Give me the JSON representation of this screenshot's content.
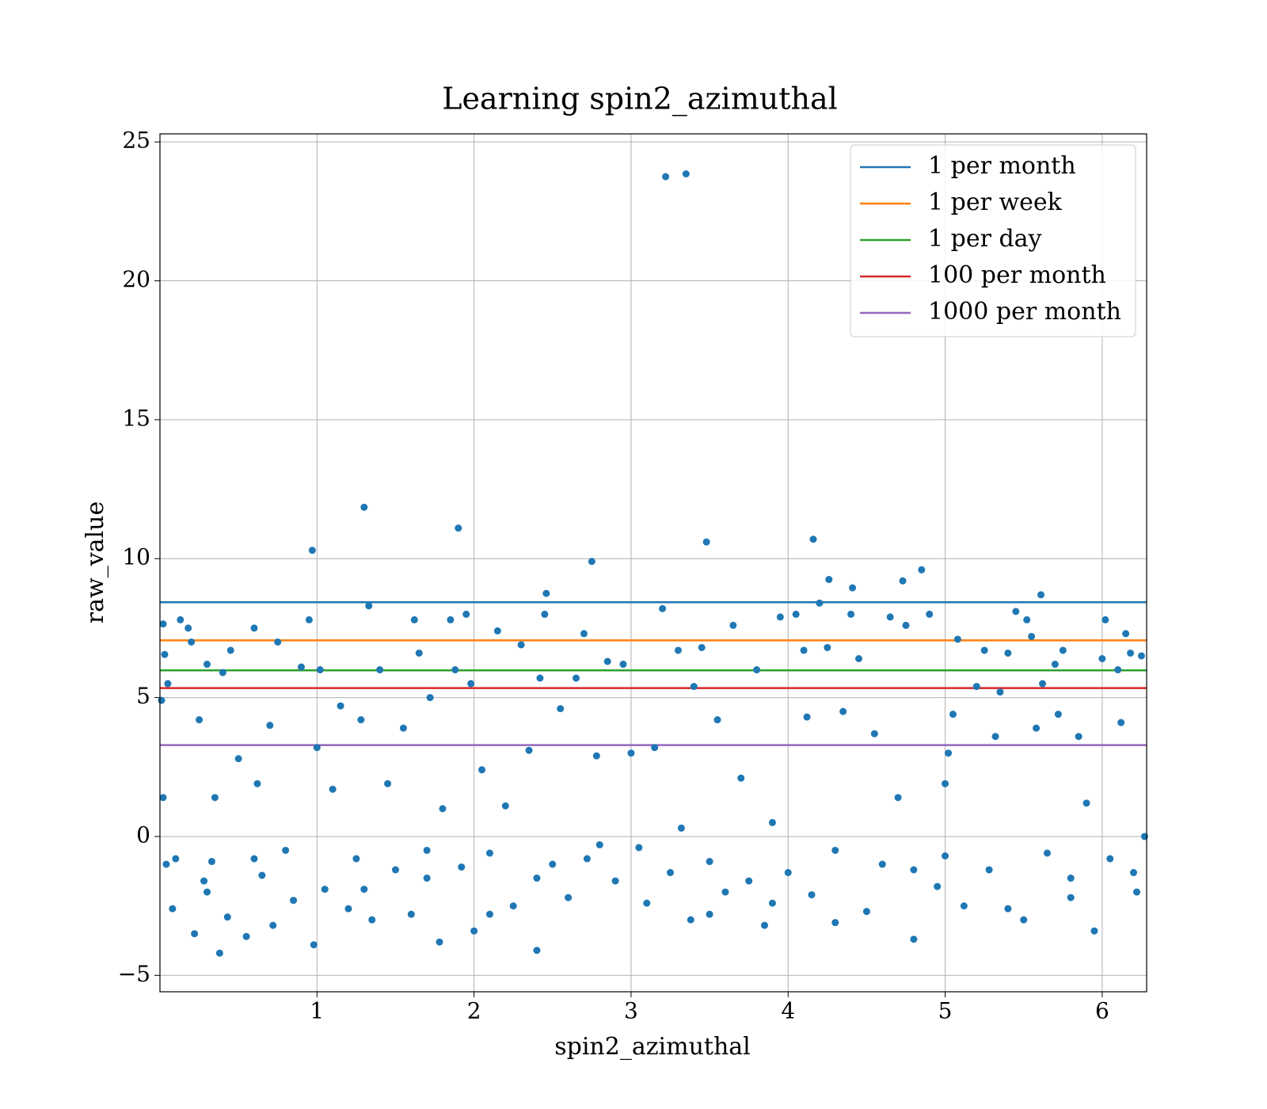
{
  "chart_data": {
    "type": "scatter",
    "title": "Learning spin2_azimuthal",
    "xlabel": "spin2_azimuthal",
    "ylabel": "raw_value",
    "color": "#1f77b4",
    "grid": true,
    "legend_loc": "upper right",
    "xlim": [
      0,
      6.283
    ],
    "ylim": [
      -5.59,
      25.29
    ],
    "xticks": [
      1,
      2,
      3,
      4,
      5,
      6
    ],
    "yticks": [
      {
        "value": -5,
        "label": "−5"
      },
      0,
      5,
      10,
      15,
      20,
      25
    ],
    "hlines": [
      {
        "name": "1 per month",
        "color": "#1f77b4",
        "value": 8.43
      },
      {
        "name": "1 per week",
        "color": "#ff7f0e",
        "value": 7.06
      },
      {
        "name": "1 per day",
        "color": "#2ca02c",
        "value": 5.98
      },
      {
        "name": "100 per month",
        "color": "#d62728",
        "value": 5.34
      },
      {
        "name": "1000 per month",
        "color": "#9467bd",
        "value": 3.29
      }
    ],
    "x": [
      3.22,
      3.35,
      1.3,
      1.9,
      0.97,
      3.48,
      4.16,
      2.75,
      4.26,
      4.41,
      4.73,
      4.85,
      5.61,
      2.46,
      0.02,
      0.03,
      0.05,
      0.01,
      0.02,
      0.04,
      0.08,
      0.1,
      0.13,
      0.18,
      0.2,
      0.22,
      0.25,
      0.28,
      0.3,
      0.33,
      0.35,
      0.38,
      0.4,
      0.43,
      0.45,
      0.5,
      0.55,
      0.6,
      0.62,
      0.65,
      0.7,
      0.72,
      0.75,
      0.8,
      0.85,
      0.9,
      0.95,
      0.98,
      1.0,
      1.02,
      1.05,
      1.1,
      1.15,
      1.2,
      1.25,
      1.28,
      1.33,
      1.35,
      1.4,
      1.45,
      1.5,
      1.55,
      1.6,
      1.62,
      1.65,
      1.7,
      1.72,
      1.78,
      1.8,
      1.85,
      1.88,
      1.92,
      1.95,
      1.98,
      2.0,
      2.05,
      2.1,
      2.15,
      2.2,
      2.25,
      2.3,
      2.35,
      2.4,
      2.42,
      2.45,
      2.5,
      2.55,
      2.6,
      2.65,
      2.7,
      2.72,
      2.78,
      2.85,
      2.9,
      2.95,
      3.0,
      3.05,
      3.1,
      3.15,
      3.2,
      3.25,
      3.3,
      3.32,
      3.38,
      3.4,
      3.45,
      3.5,
      3.55,
      3.6,
      3.65,
      3.7,
      3.75,
      3.8,
      3.85,
      3.9,
      3.95,
      4.0,
      4.05,
      4.1,
      4.12,
      4.15,
      4.2,
      4.25,
      4.3,
      4.35,
      4.4,
      4.45,
      4.5,
      4.55,
      4.6,
      4.65,
      4.7,
      4.75,
      4.8,
      4.9,
      4.95,
      5.0,
      5.02,
      5.05,
      5.08,
      5.12,
      5.2,
      5.25,
      5.28,
      5.32,
      5.35,
      5.4,
      5.45,
      5.5,
      5.52,
      5.55,
      5.58,
      5.62,
      5.65,
      5.7,
      5.72,
      5.75,
      5.8,
      5.85,
      5.9,
      5.95,
      6.0,
      6.02,
      6.05,
      6.1,
      6.12,
      6.15,
      6.18,
      6.22,
      6.25,
      6.27,
      0.6,
      1.3,
      2.1,
      2.8,
      3.5,
      4.3,
      5.0,
      5.8,
      6.2,
      1.7,
      0.3,
      3.9,
      4.8,
      2.4,
      5.4
    ],
    "values": [
      23.75,
      23.85,
      11.85,
      11.1,
      10.3,
      10.6,
      10.7,
      9.9,
      9.25,
      8.95,
      9.2,
      9.6,
      8.7,
      8.75,
      7.65,
      6.55,
      5.5,
      4.9,
      1.4,
      -1.0,
      -2.6,
      -0.8,
      7.8,
      7.5,
      7.0,
      -3.5,
      4.2,
      -1.6,
      6.2,
      -0.9,
      1.4,
      -4.2,
      5.9,
      -2.9,
      6.7,
      2.8,
      -3.6,
      7.5,
      1.9,
      -1.4,
      4.0,
      -3.2,
      7.0,
      -0.5,
      -2.3,
      6.1,
      7.8,
      -3.9,
      3.2,
      6.0,
      -1.9,
      1.7,
      4.7,
      -2.6,
      -0.8,
      4.2,
      8.3,
      -3.0,
      6.0,
      1.9,
      -1.2,
      3.9,
      -2.8,
      7.8,
      6.6,
      -0.5,
      5.0,
      -3.8,
      1.0,
      7.8,
      6.0,
      -1.1,
      8.0,
      5.5,
      -3.4,
      2.4,
      -0.6,
      7.4,
      1.1,
      -2.5,
      6.9,
      3.1,
      -4.1,
      5.7,
      8.0,
      -1.0,
      4.6,
      -2.2,
      5.7,
      7.3,
      -0.8,
      2.9,
      6.3,
      -1.6,
      6.2,
      3.0,
      -0.4,
      -2.4,
      3.2,
      8.2,
      -1.3,
      6.7,
      0.3,
      -3.0,
      5.4,
      6.8,
      -0.9,
      4.2,
      -2.0,
      7.6,
      2.1,
      -1.6,
      6.0,
      -3.2,
      0.5,
      7.9,
      -1.3,
      8.0,
      6.7,
      4.3,
      -2.1,
      8.4,
      6.8,
      -0.5,
      4.5,
      8.0,
      6.4,
      -2.7,
      3.7,
      -1.0,
      7.9,
      1.4,
      7.6,
      -3.7,
      8.0,
      -1.8,
      1.9,
      3.0,
      4.4,
      7.1,
      -2.5,
      5.4,
      6.7,
      -1.2,
      3.6,
      5.2,
      6.6,
      8.1,
      -3.0,
      7.8,
      7.2,
      3.9,
      5.5,
      -0.6,
      6.2,
      4.4,
      6.7,
      -2.2,
      3.6,
      1.2,
      -3.4,
      6.4,
      7.8,
      -0.8,
      6.0,
      4.1,
      7.3,
      6.6,
      -2.0,
      6.5,
      0.0,
      -0.8,
      -1.9,
      -2.8,
      -0.3,
      -2.8,
      -3.1,
      -0.7,
      -1.5,
      -1.3,
      -1.5,
      -2.0,
      -2.4,
      -1.2,
      -1.5,
      -2.6
    ]
  }
}
